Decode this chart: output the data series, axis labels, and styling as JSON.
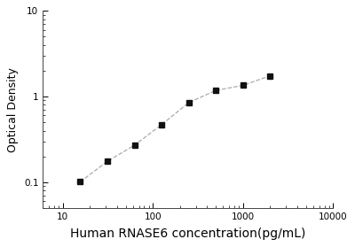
{
  "x_values": [
    15.625,
    31.25,
    62.5,
    125,
    250,
    500,
    1000,
    2000
  ],
  "y_values": [
    0.101,
    0.175,
    0.27,
    0.47,
    0.85,
    1.18,
    1.35,
    1.75
  ],
  "marker": "s",
  "marker_color": "#111111",
  "marker_size": 4.5,
  "line_color": "#aaaaaa",
  "line_style": "--",
  "line_width": 0.9,
  "xlabel": "Human RNASE6 concentration(pg/mL)",
  "ylabel": "Optical Density",
  "xlabel_fontsize": 10,
  "ylabel_fontsize": 9,
  "xlim": [
    6,
    10000
  ],
  "ylim": [
    0.05,
    10
  ],
  "x_ticks": [
    10,
    100,
    1000,
    10000
  ],
  "x_tick_labels": [
    "10",
    "100",
    "1000",
    "10000"
  ],
  "y_ticks": [
    0.1,
    1,
    10
  ],
  "y_tick_labels": [
    "0.1",
    "1",
    "10"
  ],
  "background_color": "#ffffff",
  "spine_color": "#444444",
  "tick_fontsize": 7.5
}
